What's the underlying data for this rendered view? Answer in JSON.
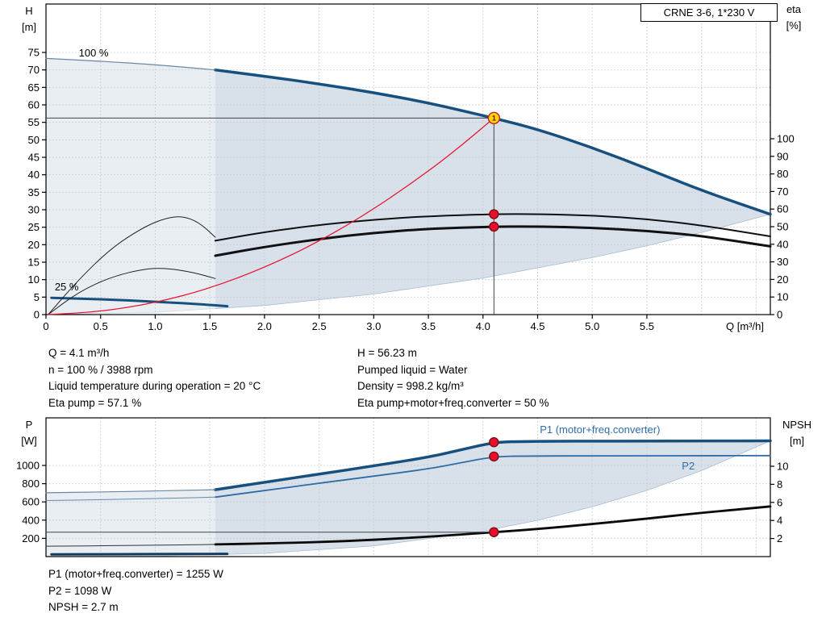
{
  "title_box": "CRNE 3-6, 1*230 V",
  "info": {
    "top_left": [
      "Q = 4.1 m³/h",
      "n = 100 % / 3988 rpm",
      "Liquid temperature during operation = 20 °C",
      "Eta pump = 57.1 %"
    ],
    "top_right": [
      "H = 56.23 m",
      "Pumped liquid = Water",
      "Density = 998.2 kg/m³",
      "Eta pump+motor+freq.converter = 50 %"
    ],
    "bottom": [
      "P1 (motor+freq.converter) = 1255 W",
      "P2 = 1098 W",
      "NPSH = 2.7 m"
    ]
  },
  "dot_styles": {
    "duty": {
      "fill": "#ffd400",
      "stroke": "#c2202f",
      "r": 7
    },
    "red": {
      "fill": "#e8112d",
      "stroke": "#7a0c14",
      "r": 5.5
    }
  },
  "chart_data": [
    {
      "id": "qh",
      "type": "line",
      "title": "CRNE 3-6, 1*230 V",
      "axes": {
        "x": {
          "label": "Q [m³/h]",
          "min": 0,
          "max": 6.63,
          "ticks": [
            0,
            0.5,
            1,
            1.5,
            2,
            2.5,
            3,
            3.5,
            4,
            4.5,
            5,
            5.5,
            6,
            6.5
          ],
          "tick_labels": [
            "0",
            "0.5",
            "1.0",
            "1.5",
            "2.0",
            "2.5",
            "3.0",
            "3.5",
            "4.0",
            "4.5",
            "5.0",
            "5.5",
            "",
            ""
          ]
        },
        "left": {
          "label_lines": [
            "H",
            "[m]"
          ],
          "min": 0,
          "max": 75,
          "ticks": [
            0,
            5,
            10,
            15,
            20,
            25,
            30,
            35,
            40,
            45,
            50,
            55,
            60,
            65,
            70,
            75
          ]
        },
        "right": {
          "label_lines": [
            "eta",
            "[%]"
          ],
          "min": 0,
          "max": 100,
          "ticks": [
            0,
            10,
            20,
            30,
            40,
            50,
            60,
            70,
            80,
            90,
            100
          ]
        }
      },
      "envelope": {
        "fill": "#d8e0ea",
        "stroke": "#a9bdd2",
        "upper": [
          [
            0,
            73.3
          ],
          [
            0.5,
            72.5
          ],
          [
            1,
            71.5
          ],
          [
            1.55,
            70
          ],
          [
            2,
            68.2
          ],
          [
            2.5,
            66
          ],
          [
            3,
            63.5
          ],
          [
            3.5,
            60.6
          ],
          [
            4.1,
            56.23
          ],
          [
            4.5,
            53
          ],
          [
            5,
            47.8
          ],
          [
            5.5,
            41.8
          ],
          [
            6,
            35.5
          ],
          [
            6.63,
            28.7
          ]
        ],
        "lower": [
          [
            0,
            0
          ],
          [
            1,
            0.65
          ],
          [
            2,
            2.61
          ],
          [
            3,
            5.88
          ],
          [
            4,
            10.45
          ],
          [
            5,
            16.3
          ],
          [
            5.5,
            19.7
          ],
          [
            6,
            23.5
          ],
          [
            6.63,
            28.7
          ]
        ]
      },
      "series": [
        {
          "name": "pump-curve-100-max",
          "axis": "h",
          "color": "#17507e",
          "width": 3.5,
          "points": [
            [
              1.55,
              70
            ],
            [
              2,
              68.2
            ],
            [
              2.5,
              66
            ],
            [
              3,
              63.5
            ],
            [
              3.5,
              60.6
            ],
            [
              4.1,
              56.23
            ],
            [
              4.5,
              53
            ],
            [
              5,
              47.8
            ],
            [
              5.5,
              41.8
            ],
            [
              6,
              35.5
            ],
            [
              6.63,
              28.7
            ]
          ]
        },
        {
          "name": "pump-curve-100-thin",
          "axis": "h",
          "color": "#6c87a6",
          "width": 1.2,
          "points": [
            [
              0,
              73.3
            ],
            [
              0.5,
              72.5
            ],
            [
              1,
              71.5
            ],
            [
              1.55,
              70
            ]
          ]
        },
        {
          "name": "pump-curve-25",
          "axis": "h",
          "color": "#17507e",
          "width": 3,
          "points": [
            [
              0.05,
              4.8
            ],
            [
              0.5,
              4.4
            ],
            [
              1,
              3.7
            ],
            [
              1.4,
              3.0
            ],
            [
              1.66,
              2.4
            ]
          ]
        },
        {
          "name": "eta-pump-curve",
          "axis": "eta",
          "color": "#111111",
          "width": 2,
          "points": [
            [
              1.55,
              42
            ],
            [
              2,
              47
            ],
            [
              2.5,
              51
            ],
            [
              3,
              54
            ],
            [
              3.5,
              56
            ],
            [
              4.1,
              57.1
            ],
            [
              4.5,
              57.2
            ],
            [
              5,
              56.4
            ],
            [
              5.5,
              54.3
            ],
            [
              6,
              50.8
            ],
            [
              6.63,
              44.5
            ]
          ]
        },
        {
          "name": "eta-total-curve",
          "axis": "eta",
          "color": "#111111",
          "width": 3,
          "points": [
            [
              1.55,
              33.5
            ],
            [
              2,
              38.5
            ],
            [
              2.5,
              43
            ],
            [
              3,
              46.5
            ],
            [
              3.5,
              48.8
            ],
            [
              4.1,
              50
            ],
            [
              4.5,
              50.1
            ],
            [
              5,
              49.4
            ],
            [
              5.5,
              47.6
            ],
            [
              6,
              44.8
            ],
            [
              6.63,
              38.8
            ]
          ]
        },
        {
          "name": "eta-arc-large",
          "axis": "eta",
          "color": "#222222",
          "width": 1,
          "points": [
            [
              0.02,
              0
            ],
            [
              0.3,
              20
            ],
            [
              0.6,
              38
            ],
            [
              0.9,
              50
            ],
            [
              1.1,
              55
            ],
            [
              1.25,
              56
            ],
            [
              1.4,
              52.5
            ],
            [
              1.55,
              44
            ]
          ]
        },
        {
          "name": "eta-arc-small",
          "axis": "eta",
          "color": "#222222",
          "width": 1,
          "points": [
            [
              0.02,
              0
            ],
            [
              0.3,
              13
            ],
            [
              0.6,
              21.5
            ],
            [
              0.9,
              26
            ],
            [
              1.1,
              26.5
            ],
            [
              1.35,
              24
            ],
            [
              1.55,
              20.5
            ]
          ]
        },
        {
          "name": "system-curve",
          "axis": "h",
          "color": "#e8112d",
          "width": 1.2,
          "points": [
            [
              0.02,
              0
            ],
            [
              0.5,
              0.84
            ],
            [
              1,
              3.35
            ],
            [
              1.5,
              7.5
            ],
            [
              2,
              13.4
            ],
            [
              2.5,
              20.9
            ],
            [
              3,
              30.1
            ],
            [
              3.5,
              41
            ],
            [
              3.8,
              48.3
            ],
            [
              4.1,
              56.23
            ]
          ]
        }
      ],
      "crosshairs": [
        {
          "q": 4.1,
          "v": 56.23,
          "axis": "h",
          "vertical": true
        }
      ],
      "labels": [
        {
          "text": "100 %",
          "q": 0.3,
          "v": 73.85,
          "axis": "h",
          "color": "#000000",
          "size": 13
        },
        {
          "text": "25 %",
          "q": 0.08,
          "v": 6.9,
          "axis": "h",
          "color": "#000000",
          "size": 13
        },
        {
          "text": "1",
          "q": 4.1,
          "v": 56.23,
          "axis": "h",
          "color": "#7a0c14",
          "size": 9,
          "anchor": "middle",
          "dy": 3
        }
      ],
      "dots": [
        {
          "q": 4.1,
          "v": 56.23,
          "axis": "h",
          "style": "duty"
        },
        {
          "q": 4.1,
          "v": 57.1,
          "axis": "eta",
          "style": "red"
        },
        {
          "q": 4.1,
          "v": 50,
          "axis": "eta",
          "style": "red"
        }
      ]
    },
    {
      "id": "power",
      "type": "line",
      "title": "",
      "axes": {
        "x": {
          "label": "",
          "min": 0,
          "max": 6.63,
          "ticks": [
            0,
            0.5,
            1,
            1.5,
            2,
            2.5,
            3,
            3.5,
            4,
            4.5,
            5,
            5.5,
            6,
            6.5
          ],
          "tick_labels": [
            "",
            "",
            "",
            "",
            "",
            "",
            "",
            "",
            "",
            "",
            "",
            "",
            "",
            ""
          ]
        },
        "left": {
          "label_lines": [
            "P",
            "[W]"
          ],
          "min": 0,
          "max": 1000,
          "ticks": [
            200,
            400,
            600,
            800,
            1000
          ]
        },
        "right": {
          "label_lines": [
            "NPSH",
            "[m]"
          ],
          "min": 0,
          "max": 10,
          "ticks": [
            2,
            4,
            6,
            8,
            10
          ]
        }
      },
      "envelope": {
        "fill": "#d8e0ea",
        "stroke": "#a9bdd2",
        "upper": [
          [
            0,
            700
          ],
          [
            0.5,
            708
          ],
          [
            1,
            720
          ],
          [
            1.55,
            734
          ],
          [
            2,
            815
          ],
          [
            2.5,
            905
          ],
          [
            3,
            995
          ],
          [
            3.5,
            1090
          ],
          [
            3.8,
            1172
          ],
          [
            4.1,
            1255
          ],
          [
            4.5,
            1263
          ],
          [
            5,
            1266
          ],
          [
            5.5,
            1267
          ],
          [
            6,
            1268
          ],
          [
            6.63,
            1270
          ]
        ],
        "lower": [
          [
            0,
            0
          ],
          [
            1,
            4
          ],
          [
            2,
            35
          ],
          [
            3,
            118
          ],
          [
            4,
            279
          ],
          [
            4.5,
            398
          ],
          [
            5,
            546
          ],
          [
            5.5,
            726
          ],
          [
            6,
            943
          ],
          [
            6.63,
            1270
          ]
        ]
      },
      "series": [
        {
          "name": "p1-curve",
          "axis": "p",
          "color": "#17507e",
          "width": 3.5,
          "points": [
            [
              1.55,
              734
            ],
            [
              2,
              815
            ],
            [
              2.5,
              905
            ],
            [
              3,
              995
            ],
            [
              3.5,
              1090
            ],
            [
              3.8,
              1172
            ],
            [
              4.1,
              1255
            ],
            [
              4.35,
              1263
            ],
            [
              4.7,
              1266
            ],
            [
              5,
              1266
            ],
            [
              5.5,
              1267
            ],
            [
              6,
              1268
            ],
            [
              6.63,
              1270
            ]
          ]
        },
        {
          "name": "p1-curve-thin",
          "axis": "p",
          "color": "#6c87a6",
          "width": 1.2,
          "points": [
            [
              0,
              700
            ],
            [
              0.5,
              708
            ],
            [
              1,
              720
            ],
            [
              1.55,
              734
            ]
          ]
        },
        {
          "name": "p2-curve",
          "axis": "p",
          "color": "#2e6ca8",
          "width": 1.8,
          "points": [
            [
              1.55,
              652
            ],
            [
              2,
              725
            ],
            [
              2.5,
              805
            ],
            [
              3,
              882
            ],
            [
              3.5,
              962
            ],
            [
              3.8,
              1030
            ],
            [
              4.1,
              1098
            ],
            [
              4.4,
              1103
            ],
            [
              5,
              1105
            ],
            [
              5.5,
              1106
            ],
            [
              6,
              1107
            ],
            [
              6.63,
              1108
            ]
          ]
        },
        {
          "name": "p2-curve-thin",
          "axis": "p",
          "color": "#6c87a6",
          "width": 1,
          "points": [
            [
              0,
              615
            ],
            [
              0.5,
              624
            ],
            [
              1,
              636
            ],
            [
              1.55,
              652
            ]
          ]
        },
        {
          "name": "p-curve-25",
          "axis": "p",
          "color": "#123a5e",
          "width": 3,
          "points": [
            [
              0.05,
              25
            ],
            [
              0.8,
              27
            ],
            [
              1.66,
              30
            ]
          ]
        },
        {
          "name": "npsh-curve",
          "axis": "npsh",
          "color": "#0a0a0a",
          "width": 2.8,
          "points": [
            [
              1.55,
              1.35
            ],
            [
              2,
              1.45
            ],
            [
              2.5,
              1.6
            ],
            [
              3,
              1.85
            ],
            [
              3.5,
              2.2
            ],
            [
              4.1,
              2.7
            ],
            [
              4.5,
              3.05
            ],
            [
              5,
              3.6
            ],
            [
              5.5,
              4.2
            ],
            [
              6,
              4.85
            ],
            [
              6.63,
              5.55
            ]
          ]
        },
        {
          "name": "npsh-curve-thin",
          "axis": "npsh",
          "color": "#333333",
          "width": 1,
          "points": [
            [
              0,
              1.15
            ],
            [
              0.8,
              1.22
            ],
            [
              1.55,
              1.35
            ]
          ]
        }
      ],
      "crosshairs": [
        {
          "q": 4.1,
          "v": 2.7,
          "axis": "npsh",
          "vertical": false
        }
      ],
      "labels": [
        {
          "text": "P1 (motor+freq.converter)",
          "q": 4.52,
          "v": 1352,
          "axis": "p",
          "color": "#2e6ca8",
          "size": 13
        },
        {
          "text": "P2",
          "q": 5.82,
          "v": 955,
          "axis": "p",
          "color": "#2e6ca8",
          "size": 13
        }
      ],
      "dots": [
        {
          "q": 4.1,
          "v": 1255,
          "axis": "p",
          "style": "red"
        },
        {
          "q": 4.1,
          "v": 1098,
          "axis": "p",
          "style": "red"
        },
        {
          "q": 4.1,
          "v": 2.7,
          "axis": "npsh",
          "style": "red"
        }
      ]
    }
  ]
}
